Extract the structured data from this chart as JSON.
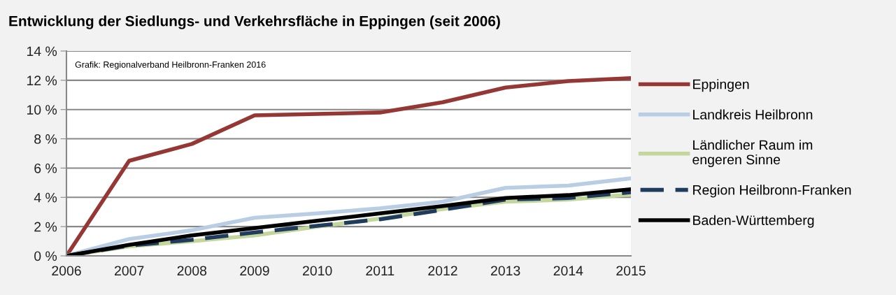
{
  "chart_data": {
    "type": "line",
    "title": "Entwicklung der Siedlungs- und Verkehrsfläche in Eppingen (seit 2006)",
    "x": [
      2006,
      2007,
      2008,
      2009,
      2010,
      2011,
      2012,
      2013,
      2014,
      2015
    ],
    "xlim": [
      2006,
      2015
    ],
    "xticks": [
      2006,
      2007,
      2008,
      2009,
      2010,
      2011,
      2012,
      2013,
      2014,
      2015
    ],
    "ylim": [
      0,
      14
    ],
    "yticks": [
      {
        "value": 0,
        "label": "0 %"
      },
      {
        "value": 2,
        "label": "2 %"
      },
      {
        "value": 4,
        "label": "4 %"
      },
      {
        "value": 6,
        "label": "6 %"
      },
      {
        "value": 8,
        "label": "8 %"
      },
      {
        "value": 10,
        "label": "10 %"
      },
      {
        "value": 12,
        "label": "12 %"
      },
      {
        "value": 14,
        "label": "14 %"
      }
    ],
    "grid": "y",
    "legend": "right",
    "marker": "none",
    "annotations": [
      "Grafik: Regionalverband Heilbronn-Franken 2016"
    ],
    "series": [
      {
        "name": "Eppingen",
        "color": "#953735",
        "values": [
          0,
          6.5,
          7.65,
          9.6,
          9.7,
          9.8,
          10.5,
          11.5,
          11.95,
          12.15
        ]
      },
      {
        "name": "Landkreis Heilbronn",
        "color": "#b9cde5",
        "values": [
          0,
          1.15,
          1.75,
          2.6,
          2.9,
          3.25,
          3.7,
          4.65,
          4.8,
          5.3
        ]
      },
      {
        "name": "Ländlicher Raum im\nengeren Sinne",
        "color": "#c3d69b",
        "values": [
          0,
          0.65,
          1.0,
          1.4,
          2.0,
          2.55,
          3.2,
          3.7,
          3.85,
          4.2
        ]
      },
      {
        "name": "Region Heilbronn-Franken",
        "color": "#1f3b5e",
        "line_style": "dashed",
        "values": [
          0,
          0.7,
          1.1,
          1.6,
          2.05,
          2.5,
          3.15,
          3.85,
          3.95,
          4.35
        ]
      },
      {
        "name": "Baden-Württemberg",
        "color": "#000000",
        "values": [
          0,
          0.75,
          1.4,
          1.9,
          2.4,
          2.9,
          3.4,
          3.95,
          4.15,
          4.55
        ]
      }
    ]
  }
}
